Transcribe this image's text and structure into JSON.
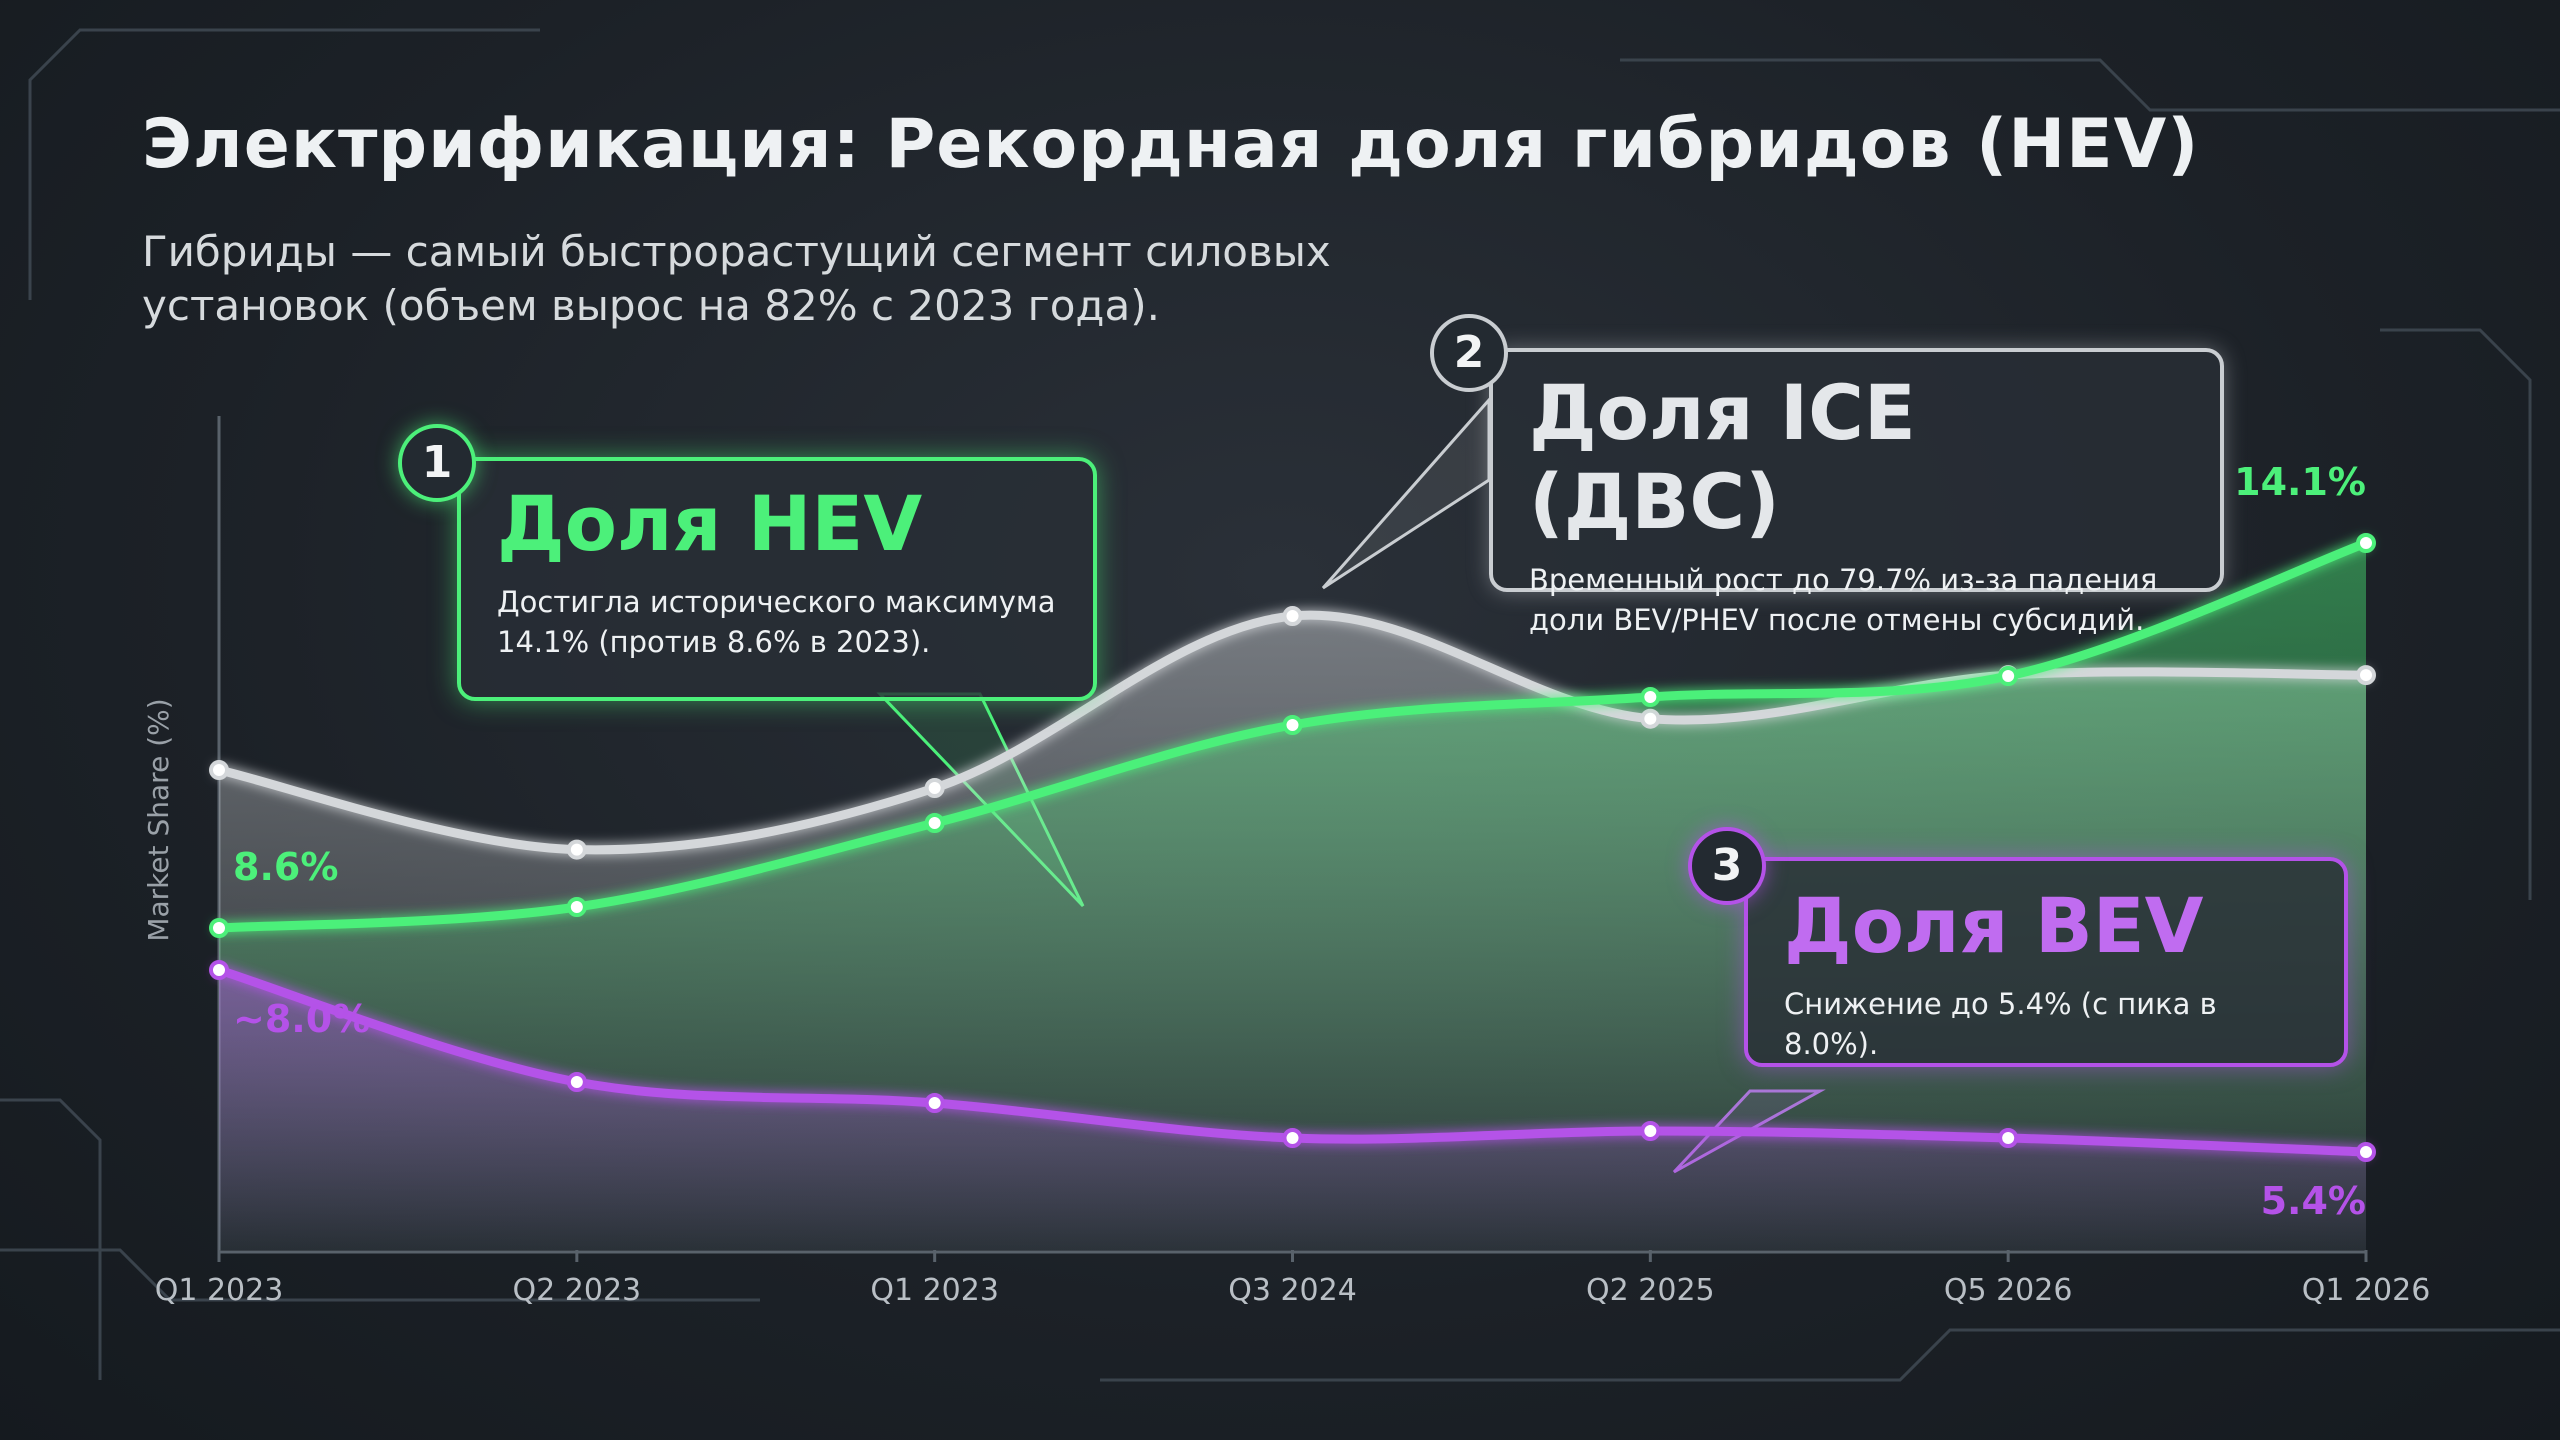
{
  "chart_data": {
    "type": "line",
    "title": "Электрификация: Рекордная доля гибридов (HEV)",
    "subtitle": "Гибриды — самый быстрорастущий сегмент силовых установок (объем вырос на 82% с 2023 года).",
    "y_label": "Market Share (%)",
    "categories": [
      "Q1 2023",
      "Q2 2023",
      "Q1 2023",
      "Q3 2024",
      "Q2 2025",
      "Q5 2026",
      "Q1 2026"
    ],
    "ylim": [
      4,
      15
    ],
    "y2lim": [
      55,
      85
    ],
    "series": [
      {
        "color": "#d4d7da",
        "axis": "y2",
        "values": [
          73.7,
          70.6,
          73.0,
          79.7,
          75.7,
          77.4,
          77.4
        ]
      },
      {
        "color": "#4cf07a",
        "values": [
          8.6,
          8.9,
          10.1,
          11.5,
          11.9,
          12.2,
          14.1
        ],
        "value_labels": [
          "8.6%",
          null,
          null,
          null,
          null,
          null,
          "14.1%"
        ]
      },
      {
        "color": "#b452e8",
        "values": [
          8.0,
          6.4,
          6.1,
          5.6,
          5.7,
          5.6,
          5.4
        ],
        "value_labels": [
          "~8.0%",
          null,
          null,
          null,
          null,
          null,
          "5.4%"
        ]
      }
    ],
    "annotations": [
      {
        "number": "1",
        "title": "Доля HEV",
        "text": "Достигла исторического максимума 14.1% (против 8.6% в 2023)."
      },
      {
        "number": "2",
        "title": "Доля ICE (ДВС)",
        "text": "Временный рост до 79.7% из-за падения доли BEV/PHEV после отмены субсидий."
      },
      {
        "number": "3",
        "title": "Доля BEV",
        "text": "Снижение до 5.4% (с пика в 8.0%)."
      }
    ]
  }
}
